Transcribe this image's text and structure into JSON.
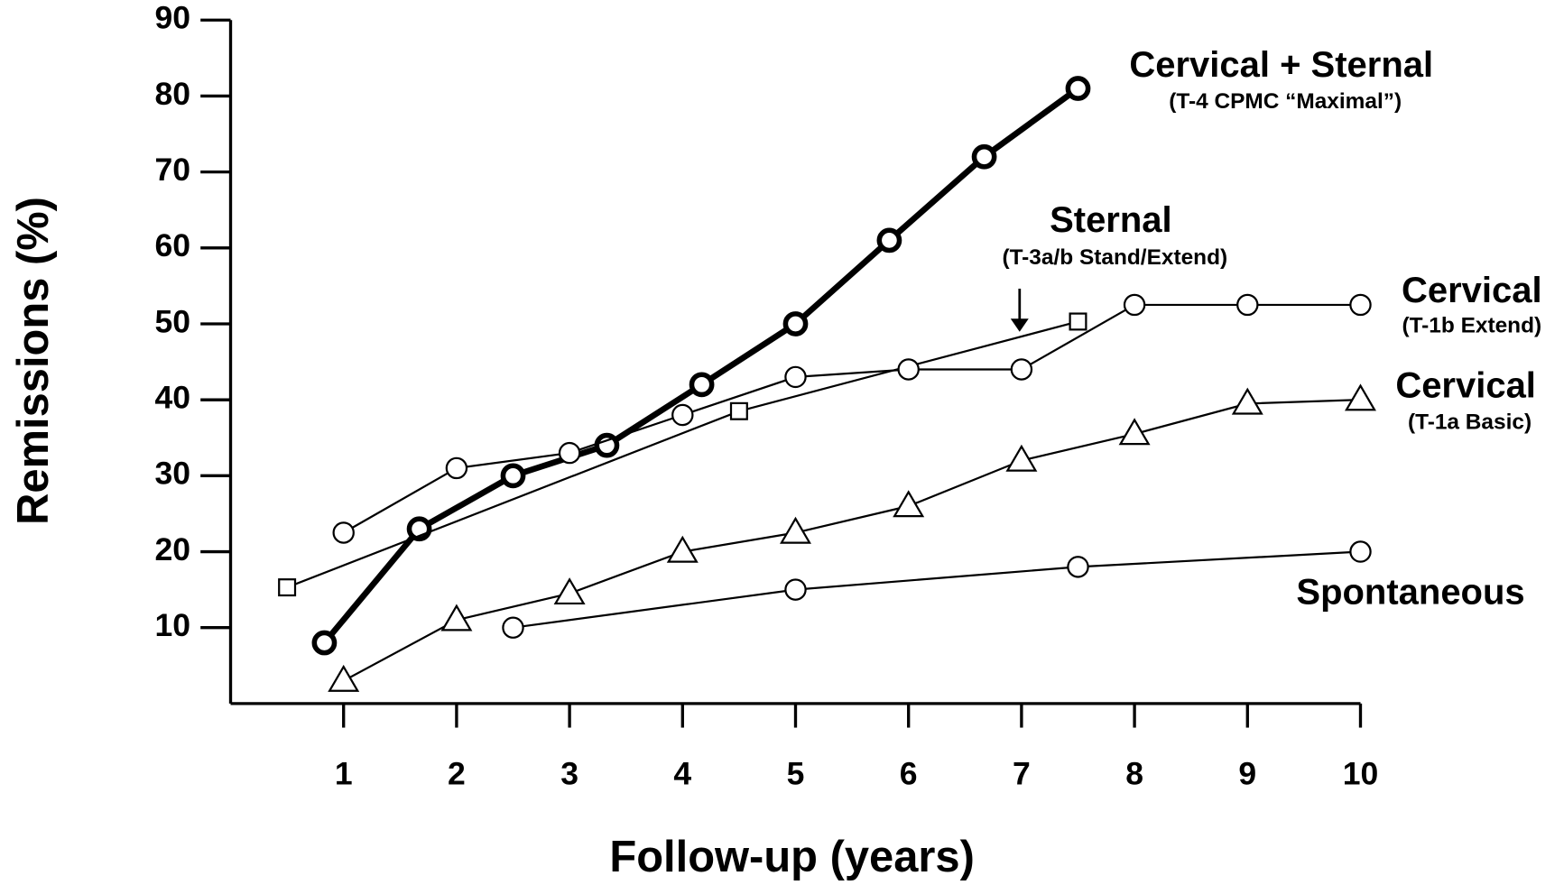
{
  "chart_data": {
    "type": "line",
    "xlabel": "Follow-up (years)",
    "ylabel": "Remissions (%)",
    "xlim": [
      0,
      10
    ],
    "xticks": [
      1,
      2,
      3,
      4,
      5,
      6,
      7,
      8,
      9,
      10
    ],
    "ylim": [
      0,
      90
    ],
    "yticks": [
      10,
      20,
      30,
      40,
      50,
      60,
      70,
      80,
      90
    ],
    "series": [
      {
        "name": "Cervical + Sternal",
        "note": "(T-4  CPMC “Maximal”)",
        "color": "#000000",
        "marker": "circle",
        "bold": true,
        "x": [
          0.83,
          1.67,
          2.5,
          3.33,
          4.17,
          5,
          5.83,
          6.67,
          7.5
        ],
        "values": [
          8,
          23,
          30,
          34,
          42,
          50,
          61,
          72,
          81
        ]
      },
      {
        "name": "Sternal",
        "note": "(T-3a/b  Stand/Extend)",
        "color": "#000000",
        "marker": "square",
        "bold": false,
        "x": [
          0.5,
          4.5,
          7.5
        ],
        "values": [
          15.3,
          38.5,
          50.3
        ]
      },
      {
        "name": "Cervical",
        "note": "(T-1b Extend)",
        "color": "#000000",
        "marker": "circle",
        "bold": false,
        "x": [
          1,
          2,
          3,
          4,
          5,
          6,
          7,
          8,
          9,
          10
        ],
        "values": [
          22.5,
          31,
          33,
          38,
          43,
          44,
          44,
          52.5,
          52.5,
          52.5
        ]
      },
      {
        "name": "Cervical",
        "note": "(T-1a Basic)",
        "color": "#000000",
        "marker": "triangle",
        "bold": false,
        "x": [
          1,
          2,
          3,
          4,
          5,
          6,
          7,
          8,
          9,
          10
        ],
        "values": [
          3,
          11,
          14.5,
          20,
          22.5,
          26,
          32,
          35.5,
          39.5,
          40
        ]
      },
      {
        "name": "Spontaneous",
        "color": "#000000",
        "marker": "circle",
        "bold": false,
        "x": [
          2.5,
          5,
          7.5,
          10
        ],
        "values": [
          10,
          15,
          18,
          20
        ]
      }
    ]
  }
}
